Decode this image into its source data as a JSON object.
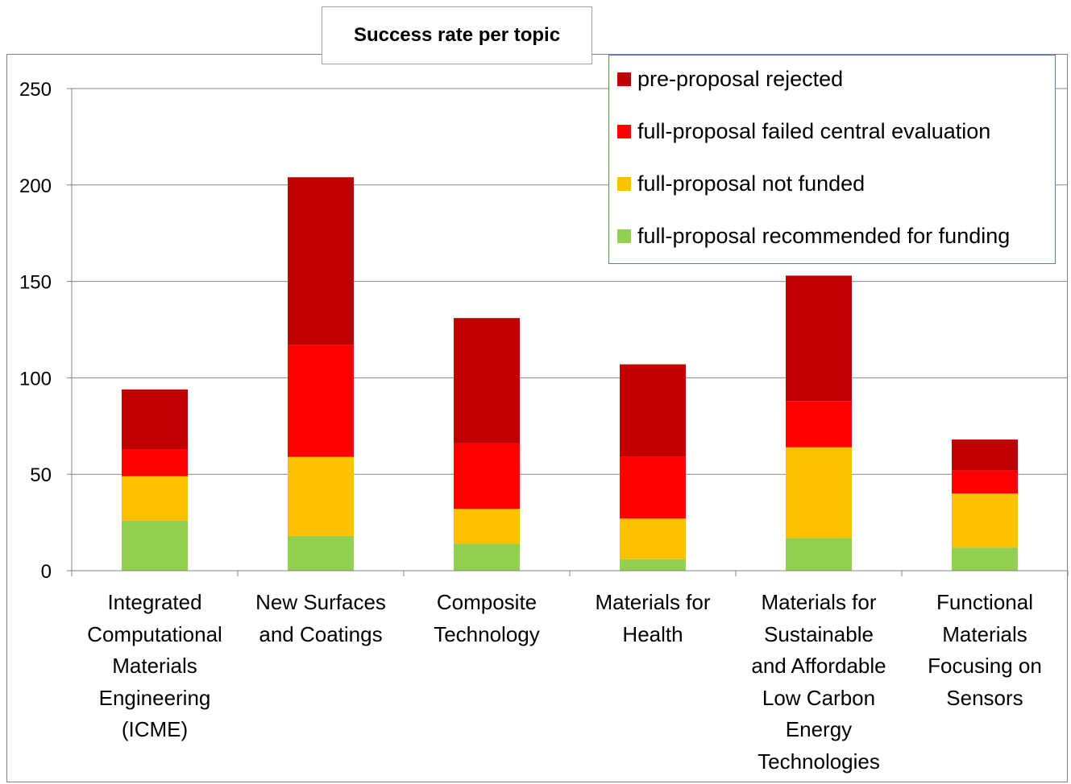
{
  "chart_data": {
    "type": "bar",
    "stacked": true,
    "title": "Success rate per topic",
    "xlabel": "",
    "ylabel": "",
    "ylim": [
      0,
      250
    ],
    "yticks": [
      0,
      50,
      100,
      150,
      200,
      250
    ],
    "grid": true,
    "legend_position": "top-right",
    "categories": [
      "Integrated Computational Materials Engineering (ICME)",
      "New Surfaces and Coatings",
      "Composite Technology",
      "Materials for Health",
      "Materials for Sustainable and Affordable Low Carbon Energy Technologies",
      "Functional Materials Focusing on Sensors"
    ],
    "category_lines": [
      [
        "Integrated",
        "Computational",
        "Materials",
        "Engineering",
        "(ICME)"
      ],
      [
        "New Surfaces",
        "and Coatings"
      ],
      [
        "Composite",
        "Technology"
      ],
      [
        "Materials for",
        "Health"
      ],
      [
        "Materials for",
        "Sustainable",
        "and Affordable",
        "Low Carbon",
        "Energy",
        "Technologies"
      ],
      [
        "Functional",
        "Materials",
        "Focusing on",
        "Sensors"
      ]
    ],
    "series": [
      {
        "name": "full-proposal recommended for funding",
        "color": "#92d050",
        "values": [
          26,
          18,
          14,
          6,
          17,
          12
        ]
      },
      {
        "name": "full-proposal not funded",
        "color": "#ffc000",
        "values": [
          23,
          41,
          18,
          21,
          47,
          28
        ]
      },
      {
        "name": "full-proposal failed central evaluation",
        "color": "#ff0000",
        "values": [
          14,
          58,
          34,
          32,
          24,
          12
        ]
      },
      {
        "name": "pre-proposal rejected",
        "color": "#c00000",
        "values": [
          31,
          87,
          65,
          48,
          65,
          16
        ]
      }
    ],
    "legend_order": [
      3,
      2,
      1,
      0
    ]
  }
}
